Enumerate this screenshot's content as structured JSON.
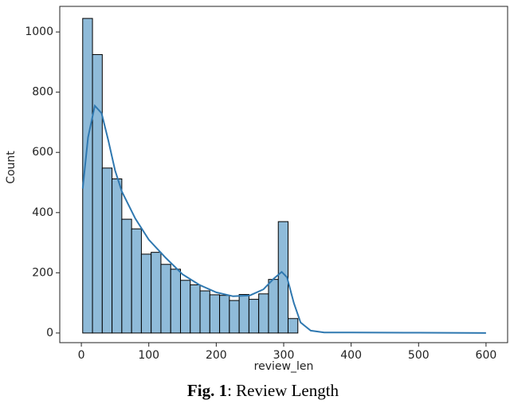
{
  "chart_data": {
    "type": "histogram",
    "x_label": "review_len",
    "y_label": "Count",
    "bins": [
      2,
      16.5,
      31,
      45.5,
      60,
      74.5,
      89,
      103.5,
      118,
      132.5,
      147,
      161.5,
      176,
      190.5,
      205,
      219.5,
      234,
      248.5,
      263,
      277.5,
      292,
      306.5,
      321
    ],
    "values": [
      1045,
      925,
      548,
      512,
      378,
      346,
      262,
      268,
      228,
      212,
      175,
      160,
      140,
      127,
      125,
      108,
      128,
      112,
      130,
      178,
      370,
      48
    ],
    "color": "#8fbbd9",
    "edge_color": "#000000",
    "kde": {
      "color": "#2f78b0",
      "x": [
        2,
        10,
        20,
        30,
        40,
        50,
        60,
        80,
        100,
        125,
        150,
        175,
        200,
        225,
        250,
        270,
        285,
        297,
        305,
        315,
        325,
        340,
        360,
        400,
        500,
        600
      ],
      "values": [
        480,
        650,
        755,
        730,
        640,
        540,
        470,
        380,
        310,
        250,
        195,
        160,
        135,
        122,
        125,
        145,
        180,
        203,
        185,
        100,
        35,
        8,
        2,
        2,
        1,
        0
      ]
    },
    "xlim": [
      -32,
      632
    ],
    "ylim": [
      -32,
      1085
    ],
    "xticks": [
      0,
      100,
      200,
      300,
      400,
      500,
      600
    ],
    "yticks": [
      0,
      200,
      400,
      600,
      800,
      1000
    ]
  },
  "caption": {
    "label": "Fig. 1",
    "text": ": Review Length"
  }
}
